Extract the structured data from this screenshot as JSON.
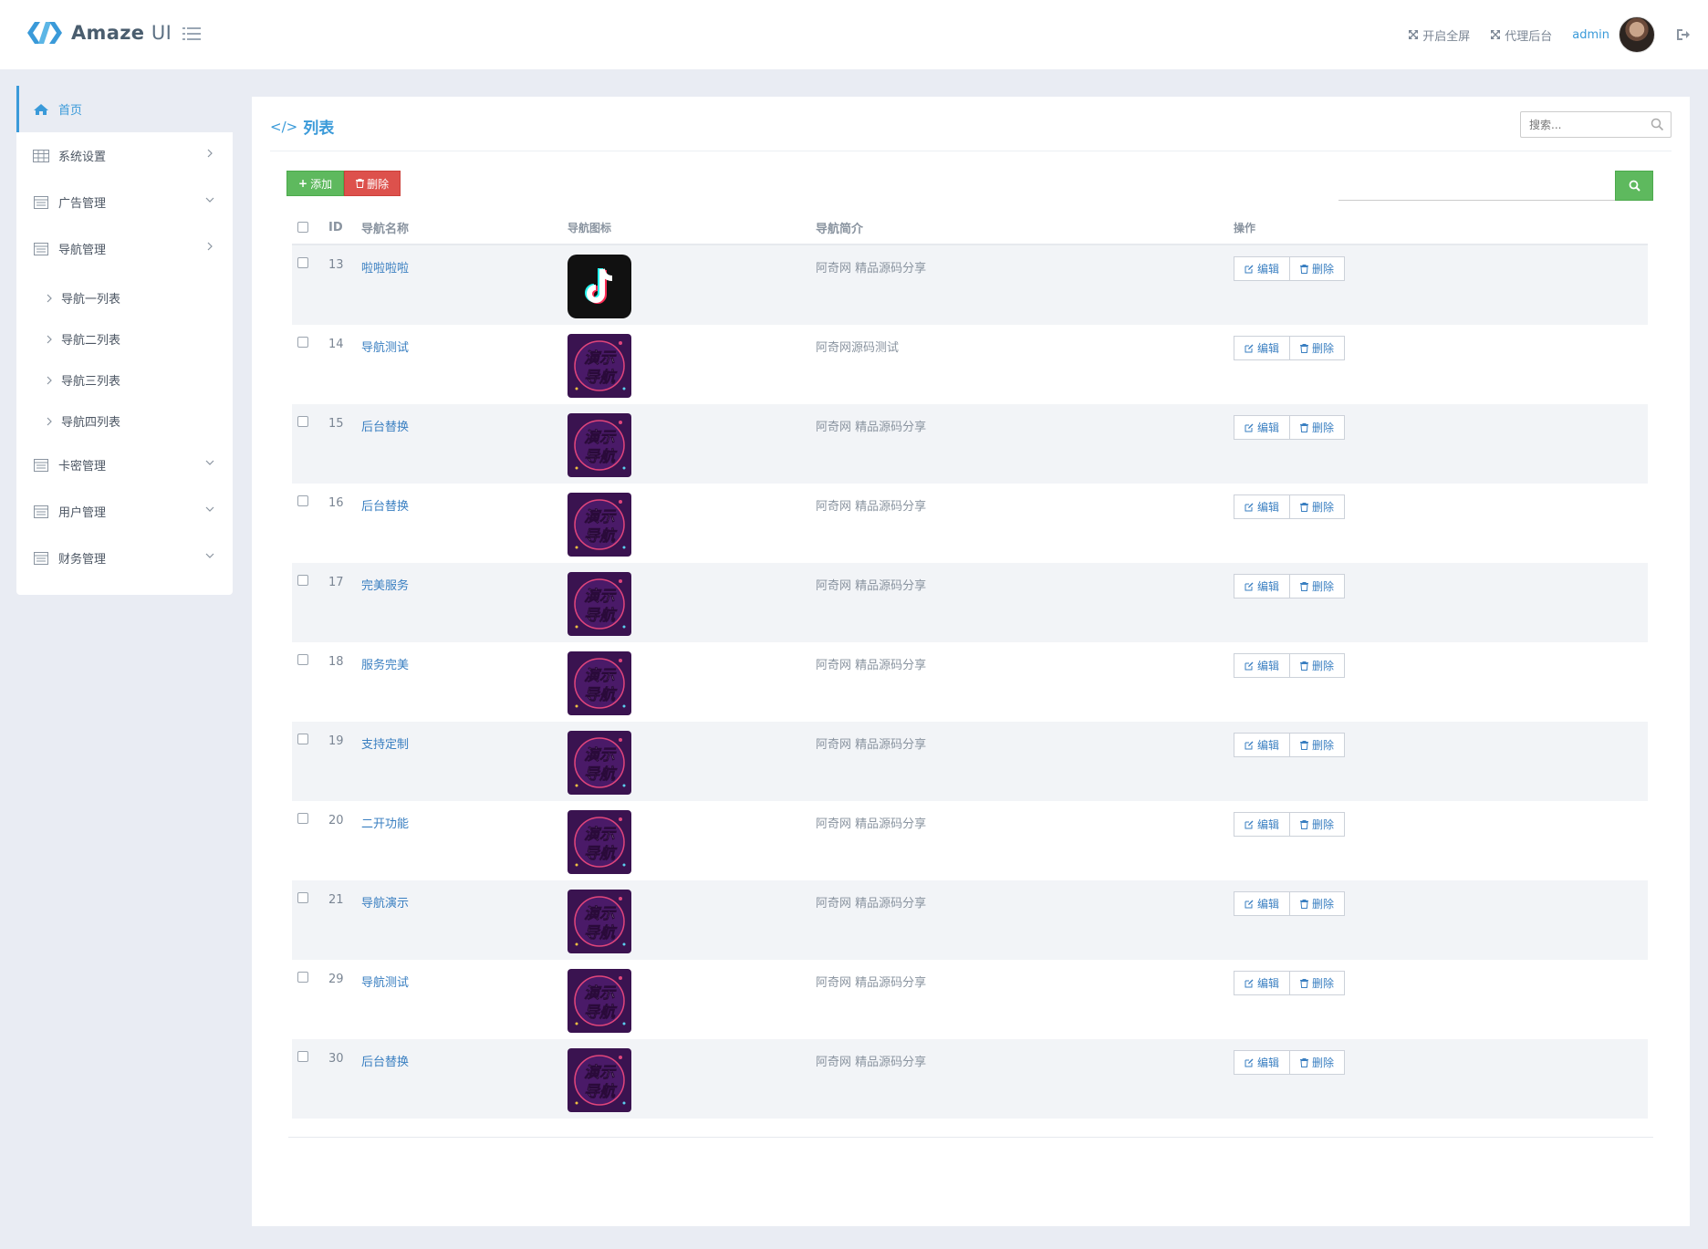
{
  "header": {
    "logo_text": "Amaze",
    "logo_text_ui": "UI",
    "fullscreen_label": "开启全屏",
    "agent_label": "代理后台",
    "admin_name": "admin"
  },
  "sidebar": {
    "items": [
      {
        "label": "首页",
        "icon": "home-icon",
        "active": true
      },
      {
        "label": "系统设置",
        "icon": "table-icon",
        "chevron": "right"
      },
      {
        "label": "广告管理",
        "icon": "calendar-icon",
        "chevron": "down"
      },
      {
        "label": "导航管理",
        "icon": "calendar-icon",
        "chevron": "right"
      }
    ],
    "sub_items": [
      {
        "label": "导航一列表"
      },
      {
        "label": "导航二列表"
      },
      {
        "label": "导航三列表"
      },
      {
        "label": "导航四列表"
      }
    ],
    "items2": [
      {
        "label": "卡密管理",
        "icon": "calendar-icon",
        "chevron": "down"
      },
      {
        "label": "用户管理",
        "icon": "calendar-icon",
        "chevron": "down"
      },
      {
        "label": "财务管理",
        "icon": "calendar-icon",
        "chevron": "down"
      }
    ]
  },
  "panel": {
    "title": "列表",
    "search_placeholder": "搜索...",
    "add_label": "添加",
    "delete_label": "删除"
  },
  "table": {
    "headers": {
      "id": "ID",
      "name": "导航名称",
      "icon": "导航图标",
      "desc": "导航简介",
      "ops": "操作"
    },
    "edit_label": "编辑",
    "delete_label": "删除",
    "image_text": [
      "演示",
      "导航"
    ],
    "rows": [
      {
        "id": "13",
        "name": "啦啦啦啦",
        "icon": "tiktok",
        "desc": "阿奇网 精品源码分享"
      },
      {
        "id": "14",
        "name": "导航测试",
        "icon": "demo",
        "desc": "阿奇网源码测试"
      },
      {
        "id": "15",
        "name": "后台替换",
        "icon": "demo",
        "desc": "阿奇网 精品源码分享"
      },
      {
        "id": "16",
        "name": "后台替换",
        "icon": "demo",
        "desc": "阿奇网 精品源码分享"
      },
      {
        "id": "17",
        "name": "完美服务",
        "icon": "demo",
        "desc": "阿奇网 精品源码分享"
      },
      {
        "id": "18",
        "name": "服务完美",
        "icon": "demo",
        "desc": "阿奇网 精品源码分享"
      },
      {
        "id": "19",
        "name": "支持定制",
        "icon": "demo",
        "desc": "阿奇网 精品源码分享"
      },
      {
        "id": "20",
        "name": "二开功能",
        "icon": "demo",
        "desc": "阿奇网 精品源码分享"
      },
      {
        "id": "21",
        "name": "导航演示",
        "icon": "demo",
        "desc": "阿奇网 精品源码分享"
      },
      {
        "id": "29",
        "name": "导航测试",
        "icon": "demo",
        "desc": "阿奇网 精品源码分享"
      },
      {
        "id": "30",
        "name": "后台替换",
        "icon": "demo",
        "desc": "阿奇网 精品源码分享"
      }
    ]
  },
  "colors": {
    "accent": "#3a9ad9",
    "success": "#5eb95e",
    "danger": "#dd514c",
    "background": "#e9ecf3"
  }
}
